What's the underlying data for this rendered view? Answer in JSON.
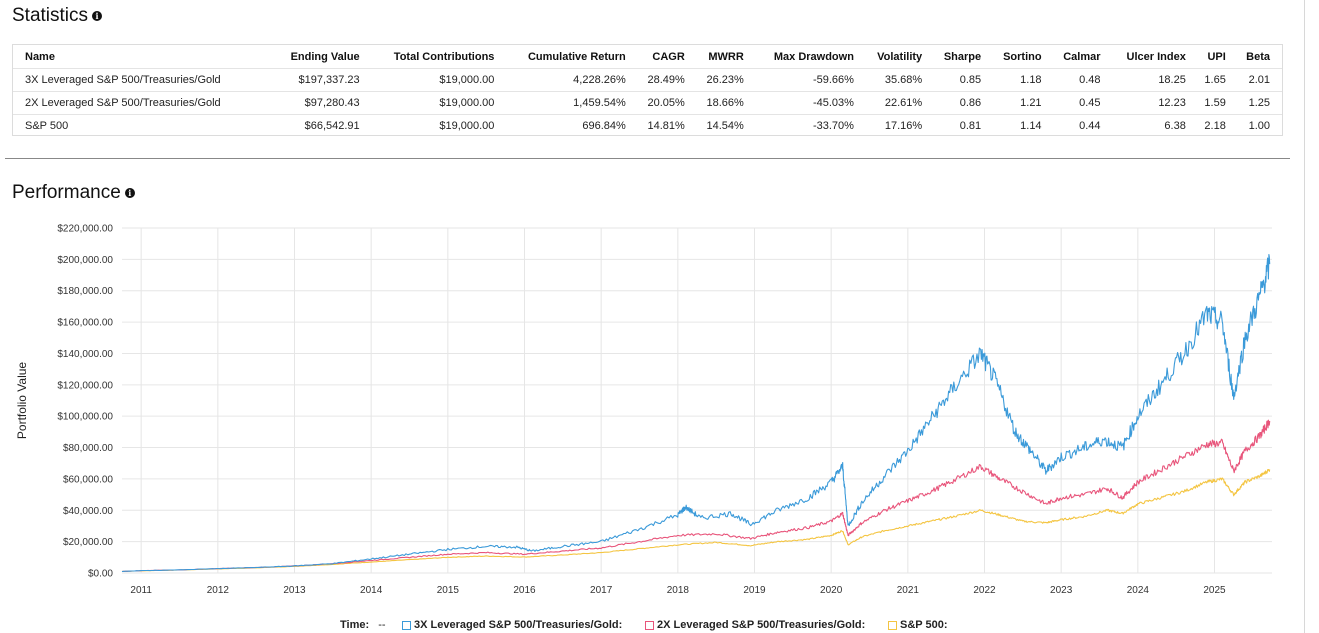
{
  "statistics": {
    "title": "Statistics",
    "info_icon": "info-icon",
    "columns": [
      "Name",
      "Ending Value",
      "Total Contributions",
      "Cumulative Return",
      "CAGR",
      "MWRR",
      "Max Drawdown",
      "Volatility",
      "Sharpe",
      "Sortino",
      "Calmar",
      "Ulcer Index",
      "UPI",
      "Beta"
    ],
    "rows": [
      [
        "3X Leveraged S&P 500/Treasuries/Gold",
        "$197,337.23",
        "$19,000.00",
        "4,228.26%",
        "28.49%",
        "26.23%",
        "-59.66%",
        "35.68%",
        "0.85",
        "1.18",
        "0.48",
        "18.25",
        "1.65",
        "2.01"
      ],
      [
        "2X Leveraged S&P 500/Treasuries/Gold",
        "$97,280.43",
        "$19,000.00",
        "1,459.54%",
        "20.05%",
        "18.66%",
        "-45.03%",
        "22.61%",
        "0.86",
        "1.21",
        "0.45",
        "12.23",
        "1.59",
        "1.25"
      ],
      [
        "S&P 500",
        "$66,542.91",
        "$19,000.00",
        "696.84%",
        "14.81%",
        "14.54%",
        "-33.70%",
        "17.16%",
        "0.81",
        "1.14",
        "0.44",
        "6.38",
        "2.18",
        "1.00"
      ]
    ]
  },
  "performance": {
    "title": "Performance",
    "info_icon": "info-icon"
  },
  "legend": {
    "time_label": "Time:",
    "time_value": "--",
    "items": [
      {
        "label": "3X Leveraged S&P 500/Treasuries/Gold:",
        "color": "#3b9ad9"
      },
      {
        "label": "2X Leveraged S&P 500/Treasuries/Gold:",
        "color": "#e8557b"
      },
      {
        "label": "S&P 500:",
        "color": "#f4c542"
      }
    ]
  },
  "chart_data": {
    "type": "line",
    "title": "Performance",
    "xlabel": "",
    "ylabel": "Portfolio Value",
    "xlim": [
      2010.75,
      2025.75
    ],
    "ylim": [
      0,
      220000
    ],
    "yticks": [
      0,
      20000,
      40000,
      60000,
      80000,
      100000,
      120000,
      140000,
      160000,
      180000,
      200000,
      220000
    ],
    "ytick_labels": [
      "$0.00",
      "$20,000.00",
      "$40,000.00",
      "$60,000.00",
      "$80,000.00",
      "$100,000.00",
      "$120,000.00",
      "$140,000.00",
      "$160,000.00",
      "$180,000.00",
      "$200,000.00",
      "$220,000.00"
    ],
    "xticks": [
      2011,
      2012,
      2013,
      2014,
      2015,
      2016,
      2017,
      2018,
      2019,
      2020,
      2021,
      2022,
      2023,
      2024,
      2025
    ],
    "xtick_labels": [
      "2011",
      "2012",
      "2013",
      "2014",
      "2015",
      "2016",
      "2017",
      "2018",
      "2019",
      "2020",
      "2021",
      "2022",
      "2023",
      "2024",
      "2025"
    ],
    "grid": true,
    "series": [
      {
        "name": "3X Leveraged S&P 500/Treasuries/Gold",
        "color": "#3b9ad9",
        "x": [
          2010.75,
          2011.0,
          2011.5,
          2012.0,
          2012.5,
          2013.0,
          2013.5,
          2014.0,
          2014.5,
          2015.0,
          2015.5,
          2015.9,
          2016.1,
          2016.5,
          2017.0,
          2017.5,
          2018.0,
          2018.1,
          2018.3,
          2018.7,
          2018.95,
          2019.3,
          2019.7,
          2020.0,
          2020.15,
          2020.22,
          2020.4,
          2020.7,
          2021.0,
          2021.3,
          2021.6,
          2021.95,
          2022.15,
          2022.4,
          2022.6,
          2022.8,
          2023.0,
          2023.3,
          2023.55,
          2023.8,
          2024.0,
          2024.3,
          2024.6,
          2024.9,
          2025.1,
          2025.25,
          2025.4,
          2025.6,
          2025.72
        ],
        "y": [
          1000,
          1500,
          2000,
          2800,
          3500,
          4500,
          6000,
          9000,
          12000,
          15000,
          17000,
          16500,
          14000,
          17000,
          20000,
          28000,
          37000,
          42000,
          35000,
          38000,
          31000,
          40000,
          48000,
          58000,
          68000,
          30000,
          45000,
          62000,
          78000,
          98000,
          118000,
          140000,
          122000,
          90000,
          78000,
          65000,
          74000,
          80000,
          85000,
          80000,
          100000,
          120000,
          140000,
          165000,
          160000,
          112000,
          150000,
          178000,
          197000
        ]
      },
      {
        "name": "2X Leveraged S&P 500/Treasuries/Gold",
        "color": "#e8557b",
        "x": [
          2010.75,
          2011.0,
          2011.5,
          2012.0,
          2012.5,
          2013.0,
          2013.5,
          2014.0,
          2014.5,
          2015.0,
          2015.5,
          2016.0,
          2016.5,
          2017.0,
          2017.5,
          2018.0,
          2018.5,
          2018.95,
          2019.3,
          2019.7,
          2020.0,
          2020.15,
          2020.22,
          2020.4,
          2020.7,
          2021.0,
          2021.3,
          2021.6,
          2021.95,
          2022.2,
          2022.5,
          2022.8,
          2023.0,
          2023.3,
          2023.6,
          2023.8,
          2024.0,
          2024.3,
          2024.6,
          2024.9,
          2025.1,
          2025.25,
          2025.4,
          2025.6,
          2025.72
        ],
        "y": [
          1000,
          1500,
          2000,
          2800,
          3500,
          4500,
          6000,
          8000,
          10000,
          12000,
          13000,
          12000,
          14000,
          16000,
          20000,
          24000,
          25000,
          22000,
          26000,
          29000,
          33000,
          38000,
          24000,
          32000,
          40000,
          46000,
          52000,
          59000,
          68000,
          60000,
          52000,
          44000,
          48000,
          50000,
          54000,
          48000,
          58000,
          66000,
          74000,
          82000,
          83000,
          65000,
          78000,
          88000,
          97000
        ]
      },
      {
        "name": "S&P 500",
        "color": "#f4c542",
        "x": [
          2010.75,
          2011.0,
          2011.5,
          2012.0,
          2012.5,
          2013.0,
          2013.5,
          2014.0,
          2014.5,
          2015.0,
          2015.5,
          2016.0,
          2016.5,
          2017.0,
          2017.5,
          2018.0,
          2018.5,
          2018.95,
          2019.3,
          2019.7,
          2020.0,
          2020.15,
          2020.22,
          2020.4,
          2020.7,
          2021.0,
          2021.3,
          2021.6,
          2021.95,
          2022.2,
          2022.5,
          2022.8,
          2023.0,
          2023.3,
          2023.6,
          2023.8,
          2024.0,
          2024.3,
          2024.6,
          2024.9,
          2025.1,
          2025.25,
          2025.4,
          2025.6,
          2025.72
        ],
        "y": [
          1000,
          1400,
          1900,
          2600,
          3300,
          4200,
          5500,
          7000,
          8500,
          10000,
          10800,
          10200,
          11500,
          13000,
          15500,
          18000,
          19500,
          17500,
          20000,
          21500,
          24000,
          27000,
          18000,
          23000,
          27000,
          30000,
          33000,
          36000,
          40000,
          37000,
          33000,
          32000,
          34000,
          36000,
          40000,
          38000,
          44000,
          48000,
          52000,
          58000,
          60000,
          50000,
          58000,
          62000,
          66000
        ]
      }
    ]
  }
}
